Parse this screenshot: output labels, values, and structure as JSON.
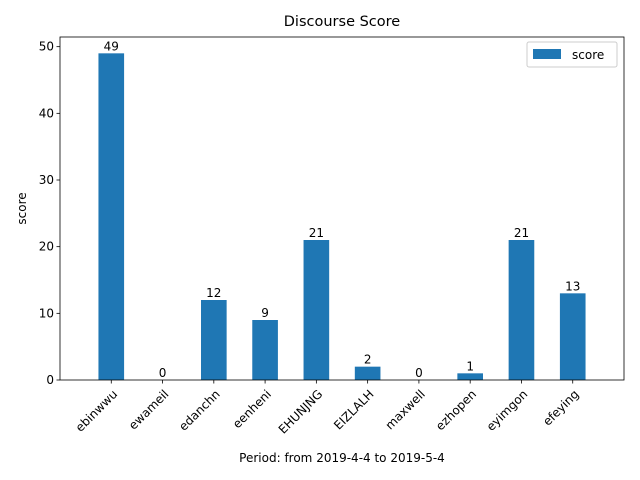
{
  "chart_data": {
    "type": "bar",
    "title": "Discourse Score",
    "xlabel": "Period: from 2019-4-4 to 2019-5-4",
    "ylabel": "score",
    "categories": [
      "ebinwwu",
      "ewameil",
      "edanchn",
      "eenheni",
      "EHUNJNG",
      "EIZLALH",
      "maxwell",
      "ezhopen",
      "eyimgon",
      "efeying"
    ],
    "series": [
      {
        "name": "score",
        "values": [
          49,
          0,
          12,
          9,
          21,
          2,
          0,
          1,
          21,
          13
        ]
      }
    ],
    "ylim": [
      0,
      51.45
    ],
    "yticks": [
      0,
      10,
      20,
      30,
      40,
      50
    ],
    "grid": false,
    "legend_position": "top-right",
    "bar_color": "#1f77b4"
  }
}
